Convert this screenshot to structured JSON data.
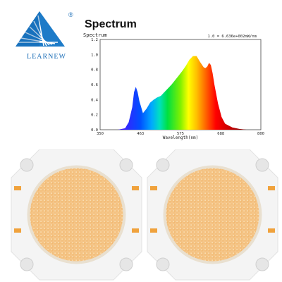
{
  "logo": {
    "brand": "LEARNEW",
    "registered": "®",
    "icon": "blue-triangle-ray-logo"
  },
  "heading": "Spectrum",
  "colors": {
    "brand_blue": "#1d6fb8",
    "chip_phosphor": "#f6c98f",
    "chip_board": "#f4f4f4",
    "chip_pad": "#f0a23c"
  },
  "chips": {
    "count": 2,
    "icon": "cob-led-chip"
  },
  "chart_data": {
    "type": "area",
    "title": "Spectrum",
    "xlabel": "Wavelength(nm)",
    "ylabel": "",
    "xlim": [
      350,
      800
    ],
    "ylim": [
      0,
      1.2
    ],
    "x_ticks": [
      350,
      463,
      575,
      688,
      800
    ],
    "x_tick_labels": [
      "350",
      "463",
      "575",
      "688",
      "800"
    ],
    "y_ticks": [
      0,
      0.2,
      0.4,
      0.6,
      0.8,
      1.0,
      1.2
    ],
    "y_tick_labels": [
      "0.0",
      "0.2",
      "0.4",
      "0.6",
      "0.8",
      "1.0",
      "1.2"
    ],
    "annotation": "1.0 = 6.636e+002mW/nm",
    "corner_label": "Spectrum",
    "fill": "rainbow-by-wavelength",
    "series": [
      {
        "x": [
          350,
          400,
          420,
          430,
          440,
          445,
          450,
          455,
          460,
          470,
          480,
          490,
          500,
          510,
          520,
          530,
          540,
          550,
          560,
          570,
          580,
          590,
          600,
          610,
          620,
          630,
          640,
          645,
          650,
          655,
          660,
          665,
          670,
          680,
          690,
          700,
          720,
          740,
          760,
          800
        ],
        "y": [
          0.0,
          0.0,
          0.02,
          0.1,
          0.3,
          0.5,
          0.57,
          0.5,
          0.38,
          0.22,
          0.28,
          0.36,
          0.4,
          0.43,
          0.45,
          0.5,
          0.55,
          0.6,
          0.66,
          0.72,
          0.78,
          0.85,
          0.93,
          0.98,
          0.98,
          0.9,
          0.83,
          0.82,
          0.84,
          0.89,
          0.86,
          0.75,
          0.6,
          0.35,
          0.17,
          0.08,
          0.03,
          0.01,
          0.0,
          0.0
        ]
      }
    ]
  }
}
